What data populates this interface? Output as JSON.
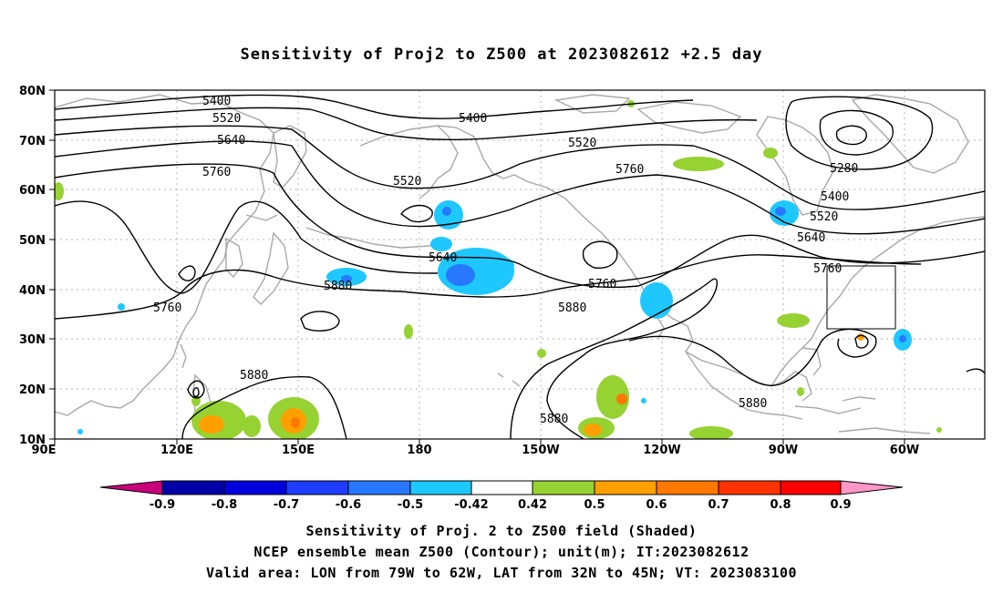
{
  "title": "Sensitivity of Proj2 to Z500 at 2023082612 +2.5 day",
  "map": {
    "lat_labels": [
      "80N",
      "70N",
      "60N",
      "50N",
      "40N",
      "30N",
      "20N",
      "10N"
    ],
    "lon_labels": [
      "90E",
      "120E",
      "150E",
      "180",
      "150W",
      "120W",
      "90W",
      "60W"
    ],
    "valid_box": {
      "lon_from": "79W",
      "lon_to": "62W",
      "lat_from": "32N",
      "lat_to": "45N"
    }
  },
  "contour_labels": [
    "5400",
    "5520",
    "5640",
    "5760",
    "5400",
    "5520",
    "5760",
    "5520",
    "5640",
    "5280",
    "5400",
    "5520",
    "5640",
    "5760",
    "5880",
    "5760",
    "5880",
    "5760",
    "5880",
    "5880",
    "5880"
  ],
  "colorbar": {
    "labels": [
      "-0.9",
      "-0.8",
      "-0.7",
      "-0.6",
      "-0.5",
      "-0.42",
      "0.42",
      "0.5",
      "0.6",
      "0.7",
      "0.8",
      "0.9"
    ],
    "colors": [
      "#c8007a",
      "#0000a8",
      "#0000dc",
      "#1e3cff",
      "#2878ff",
      "#1ec8ff",
      "#ffffff",
      "#96d232",
      "#ffa000",
      "#ff7800",
      "#ff3200",
      "#ff0000",
      "#ff96c8"
    ]
  },
  "captions": [
    "Sensitivity of Proj. 2 to Z500 field (Shaded)",
    "NCEP ensemble mean Z500 (Contour); unit(m); IT:2023082612",
    "Valid area: LON from 79W to 62W, LAT from 32N to 45N; VT: 2023083100"
  ]
}
